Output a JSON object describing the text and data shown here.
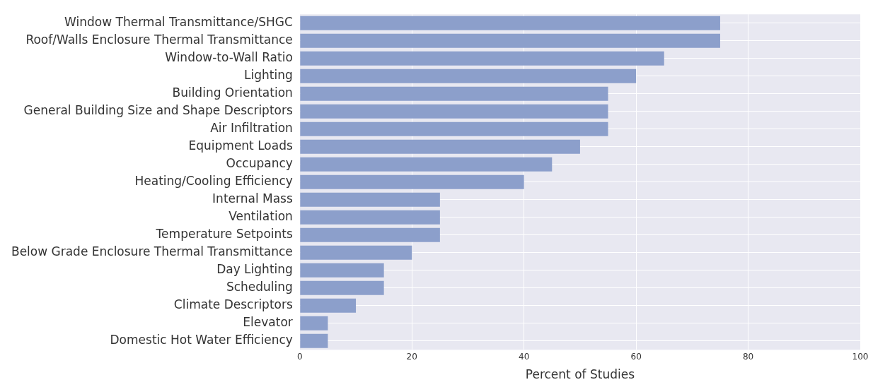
{
  "chart_data": {
    "type": "bar",
    "orientation": "horizontal",
    "xlabel": "Percent of Studies",
    "categories": [
      "Window Thermal Transmittance/SHGC",
      "Roof/Walls Enclosure Thermal Transmittance",
      "Window-to-Wall Ratio",
      "Lighting",
      "Building Orientation",
      "General Building Size and Shape Descriptors",
      "Air Infiltration",
      "Equipment Loads",
      "Occupancy",
      "Heating/Cooling Efficiency",
      "Internal Mass",
      "Ventilation",
      "Temperature Setpoints",
      "Below Grade Enclosure Thermal Transmittance",
      "Day Lighting",
      "Scheduling",
      "Climate Descriptors",
      "Elevator",
      "Domestic Hot Water Efficiency"
    ],
    "values": [
      75,
      75,
      65,
      60,
      55,
      55,
      55,
      50,
      45,
      40,
      25,
      25,
      25,
      20,
      15,
      15,
      10,
      5,
      5
    ],
    "color": "#8c9fcb",
    "xlim": [
      0,
      100
    ],
    "xticks": [
      0,
      20,
      40,
      60,
      80,
      100
    ],
    "grid": true
  }
}
